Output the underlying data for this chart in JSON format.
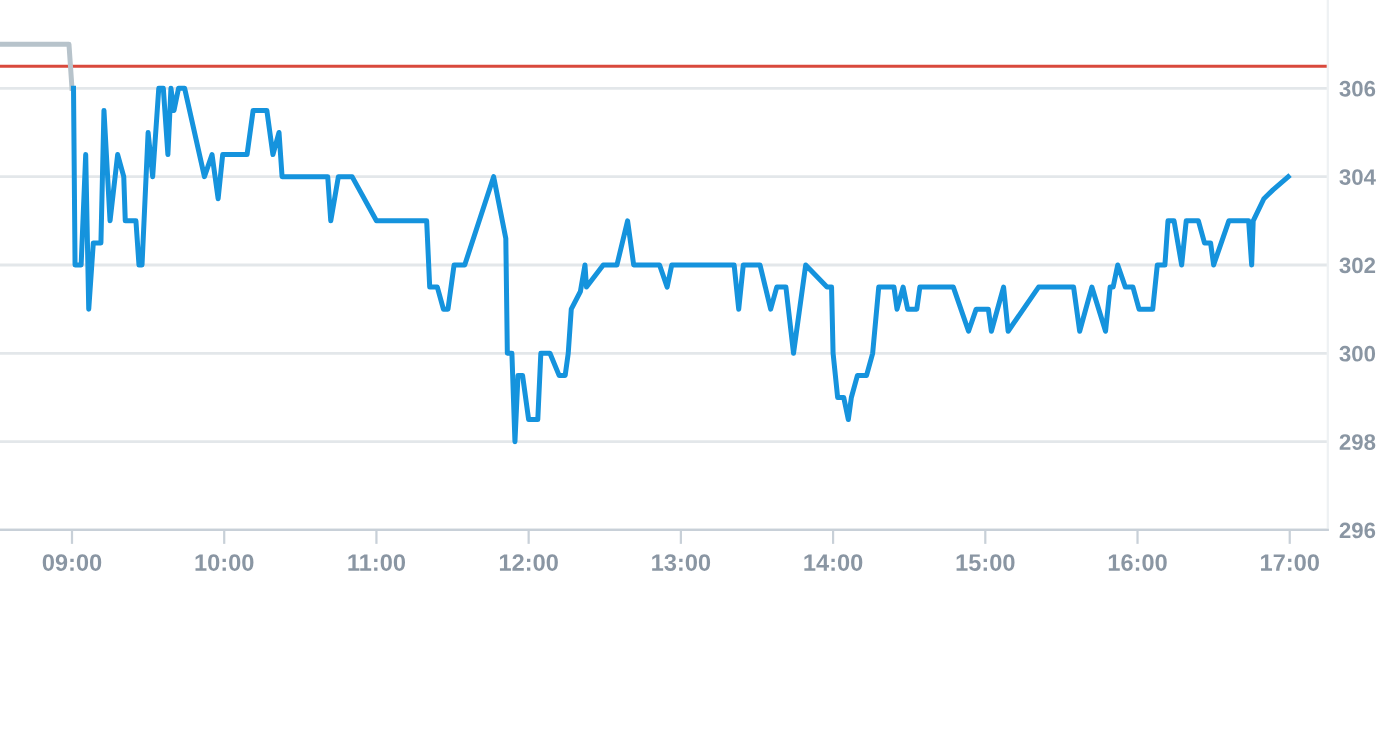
{
  "chart_data": {
    "type": "line",
    "xlim": [
      8.527,
      17.25
    ],
    "ylim": [
      296,
      308
    ],
    "xticks": [
      {
        "value": 9,
        "label": "09:00"
      },
      {
        "value": 10,
        "label": "10:00"
      },
      {
        "value": 11,
        "label": "11:00"
      },
      {
        "value": 12,
        "label": "12:00"
      },
      {
        "value": 13,
        "label": "13:00"
      },
      {
        "value": 14,
        "label": "14:00"
      },
      {
        "value": 15,
        "label": "15:00"
      },
      {
        "value": 16,
        "label": "16:00"
      },
      {
        "value": 17,
        "label": "17:00"
      }
    ],
    "yticks": [
      296,
      298,
      300,
      302,
      304,
      306
    ],
    "grid": "y",
    "marker": "none",
    "line_style": "solid",
    "ref_lines": [
      {
        "axis": "y",
        "value": 306.5,
        "color": "#d9493c"
      }
    ],
    "series": [
      {
        "color": "#b7c3cb",
        "x": [
          8.527,
          8.98,
          9.0
        ],
        "values": [
          307,
          307,
          306
        ]
      },
      {
        "color": "#1593dd",
        "x": [
          9.01,
          9.02,
          9.06,
          9.09,
          9.11,
          9.14,
          9.19,
          9.21,
          9.25,
          9.3,
          9.34,
          9.35,
          9.42,
          9.44,
          9.46,
          9.5,
          9.53,
          9.57,
          9.6,
          9.63,
          9.65,
          9.67,
          9.7,
          9.74,
          9.87,
          9.92,
          9.96,
          9.99,
          10.15,
          10.19,
          10.28,
          10.32,
          10.36,
          10.38,
          10.68,
          10.7,
          10.75,
          10.84,
          11.0,
          11.33,
          11.35,
          11.4,
          11.44,
          11.47,
          11.51,
          11.58,
          11.77,
          11.85,
          11.86,
          11.89,
          11.91,
          11.93,
          11.96,
          12.0,
          12.06,
          12.08,
          12.14,
          12.2,
          12.24,
          12.26,
          12.28,
          12.34,
          12.37,
          12.38,
          12.49,
          12.58,
          12.65,
          12.69,
          12.86,
          12.91,
          12.94,
          13.35,
          13.38,
          13.41,
          13.52,
          13.59,
          13.63,
          13.69,
          13.74,
          13.82,
          13.96,
          13.99,
          14.0,
          14.03,
          14.07,
          14.1,
          14.12,
          14.16,
          14.22,
          14.26,
          14.3,
          14.4,
          14.42,
          14.46,
          14.49,
          14.55,
          14.57,
          14.79,
          14.89,
          14.94,
          15.02,
          15.04,
          15.12,
          15.15,
          15.35,
          15.58,
          15.62,
          15.7,
          15.79,
          15.82,
          15.84,
          15.87,
          15.92,
          15.97,
          16.01,
          16.1,
          16.13,
          16.18,
          16.2,
          16.24,
          16.29,
          16.32,
          16.4,
          16.44,
          16.48,
          16.5,
          16.6,
          16.73,
          16.75,
          16.76,
          16.83,
          16.89,
          16.99
        ],
        "values": [
          306,
          302,
          302,
          304.5,
          301,
          302.5,
          302.5,
          305.5,
          303,
          304.5,
          304,
          303,
          303,
          302,
          302,
          305,
          304,
          306,
          306,
          304.5,
          306,
          305.5,
          306,
          306,
          304,
          304.5,
          303.5,
          304.5,
          304.5,
          305.5,
          305.5,
          304.5,
          305,
          304,
          304,
          303,
          304,
          304,
          303,
          303,
          301.5,
          301.5,
          301,
          301,
          302,
          302,
          304,
          302.6,
          300,
          300,
          298,
          299.5,
          299.5,
          298.5,
          298.5,
          300,
          300,
          299.5,
          299.5,
          300,
          301,
          301.4,
          302,
          301.5,
          302,
          302,
          303,
          302,
          302,
          301.5,
          302,
          302,
          301,
          302,
          302,
          301,
          301.5,
          301.5,
          300,
          302,
          301.5,
          301.5,
          300,
          299,
          299,
          298.5,
          299,
          299.5,
          299.5,
          300,
          301.5,
          301.5,
          301,
          301.5,
          301,
          301,
          301.5,
          301.5,
          300.5,
          301,
          301,
          300.5,
          301.5,
          300.5,
          301.5,
          301.5,
          300.5,
          301.5,
          300.5,
          301.5,
          301.5,
          302,
          301.5,
          301.5,
          301,
          301,
          302,
          302,
          303,
          303,
          302,
          303,
          303,
          302.5,
          302.5,
          302,
          303,
          303,
          302,
          303,
          303.5,
          303.7,
          304
        ]
      }
    ]
  }
}
